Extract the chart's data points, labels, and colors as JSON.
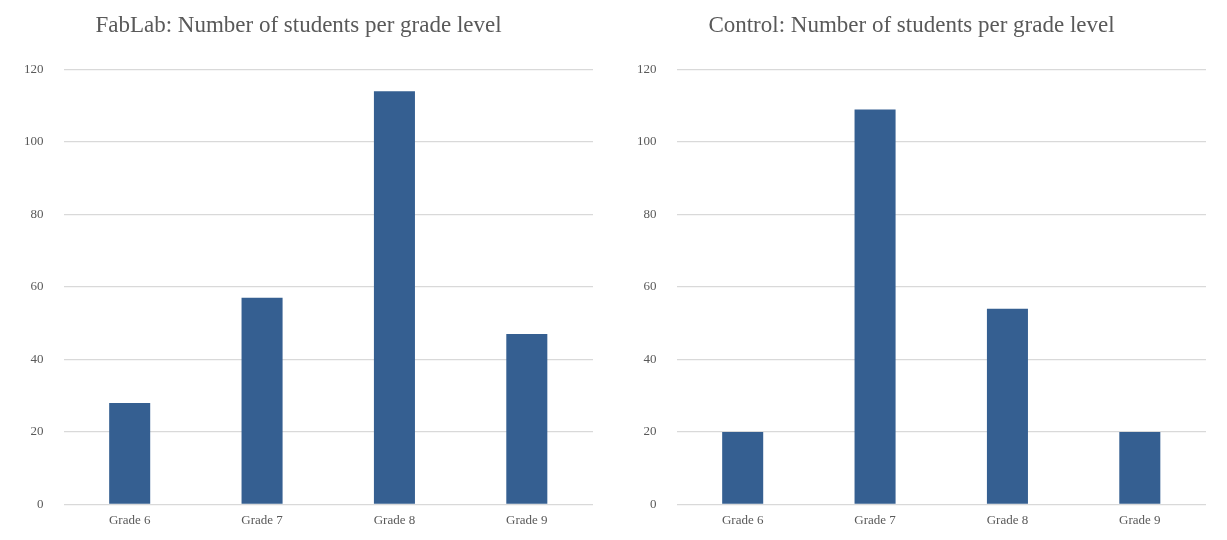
{
  "chart_data": [
    {
      "type": "bar",
      "title": "FabLab: Number of students per grade level",
      "categories": [
        "Grade 6",
        "Grade 7",
        "Grade 8",
        "Grade 9"
      ],
      "values": [
        28,
        57,
        114,
        47
      ],
      "color": "#355f91",
      "ylim": [
        0,
        120
      ],
      "yticks": [
        0,
        20,
        40,
        60,
        80,
        100,
        120
      ],
      "grid": "y",
      "legend": false
    },
    {
      "type": "bar",
      "title": "Control: Number of students per grade level",
      "categories": [
        "Grade 6",
        "Grade 7",
        "Grade 8",
        "Grade 9"
      ],
      "values": [
        20,
        109,
        54,
        20
      ],
      "color": "#355f91",
      "ylim": [
        0,
        120
      ],
      "yticks": [
        0,
        20,
        40,
        60,
        80,
        100,
        120
      ],
      "grid": "y",
      "legend": false
    }
  ]
}
